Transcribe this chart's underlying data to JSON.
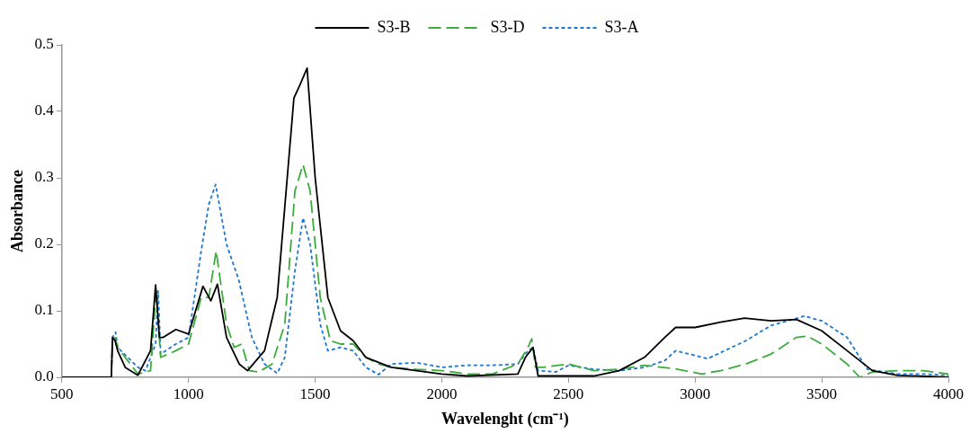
{
  "chart_data": {
    "type": "line",
    "xlabel": "Wavelenght (cm⁻¹)",
    "ylabel": "Absorbance",
    "legend": "top",
    "marker": "none",
    "grid": false,
    "xlim": [
      500,
      4000
    ],
    "xticks": [
      500,
      1000,
      1500,
      2000,
      2500,
      3000,
      3500,
      4000
    ],
    "ylim": [
      0,
      0.5
    ],
    "yticks": [
      {
        "value": 0,
        "label": "0.0"
      },
      0.1,
      0.2,
      0.3,
      0.4,
      0.5
    ],
    "series": [
      {
        "name": "S3-B",
        "color": "#000000",
        "line_style": "solid",
        "x": [
          500,
          695,
          700,
          710,
          720,
          750,
          800,
          850,
          870,
          885,
          900,
          950,
          1000,
          1057,
          1088,
          1114,
          1150,
          1200,
          1233,
          1300,
          1350,
          1416,
          1440,
          1468,
          1500,
          1550,
          1600,
          1650,
          1700,
          1800,
          1900,
          2000,
          2100,
          2300,
          2330,
          2350,
          2360,
          2380,
          2500,
          2600,
          2700,
          2800,
          2880,
          2923,
          3000,
          3100,
          3195,
          3300,
          3400,
          3500,
          3600,
          3700,
          3800,
          4000
        ],
        "values": [
          0,
          0,
          0.06,
          0.055,
          0.04,
          0.015,
          0.003,
          0.04,
          0.139,
          0.06,
          0.06,
          0.072,
          0.065,
          0.137,
          0.115,
          0.14,
          0.06,
          0.02,
          0.01,
          0.04,
          0.12,
          0.42,
          0.44,
          0.465,
          0.3,
          0.12,
          0.07,
          0.055,
          0.03,
          0.015,
          0.01,
          0.005,
          0.002,
          0.005,
          0.03,
          0.04,
          0.045,
          0.002,
          0.002,
          0.002,
          0.01,
          0.03,
          0.06,
          0.075,
          0.075,
          0.083,
          0.089,
          0.085,
          0.087,
          0.07,
          0.04,
          0.01,
          0.003,
          0
        ]
      },
      {
        "name": "S3-D",
        "color": "#3cac3c",
        "line_style": "dashed",
        "x": [
          500,
          695,
          700,
          710,
          720,
          800,
          850,
          872,
          890,
          950,
          1000,
          1050,
          1080,
          1109,
          1150,
          1180,
          1210,
          1240,
          1277,
          1330,
          1380,
          1420,
          1452,
          1480,
          1520,
          1560,
          1600,
          1650,
          1700,
          1750,
          1800,
          1900,
          2000,
          2100,
          2200,
          2300,
          2340,
          2355,
          2370,
          2400,
          2500,
          2600,
          2700,
          2800,
          2918,
          3026,
          3100,
          3200,
          3300,
          3400,
          3443,
          3500,
          3600,
          3650,
          3700,
          3800,
          3900,
          4000
        ],
        "values": [
          0,
          0,
          0.055,
          0.06,
          0.045,
          0.005,
          0.01,
          0.13,
          0.03,
          0.04,
          0.05,
          0.12,
          0.12,
          0.19,
          0.08,
          0.045,
          0.05,
          0.01,
          0.008,
          0.02,
          0.08,
          0.28,
          0.32,
          0.28,
          0.12,
          0.055,
          0.05,
          0.05,
          0.03,
          0.02,
          0.015,
          0.012,
          0.01,
          0.005,
          0.005,
          0.02,
          0.045,
          0.058,
          0.015,
          0.015,
          0.02,
          0.01,
          0.012,
          0.018,
          0.013,
          0.005,
          0.01,
          0.02,
          0.035,
          0.06,
          0.062,
          0.05,
          0.02,
          0,
          0.008,
          0.01,
          0.01,
          0.005
        ]
      },
      {
        "name": "S3-A",
        "color": "#1f78d0",
        "line_style": "dotted",
        "x": [
          500,
          695,
          700,
          712,
          720,
          800,
          830,
          870,
          880,
          890,
          950,
          1000,
          1050,
          1080,
          1107,
          1150,
          1198,
          1250,
          1300,
          1350,
          1380,
          1420,
          1452,
          1480,
          1520,
          1550,
          1600,
          1650,
          1700,
          1750,
          1800,
          1900,
          2000,
          2100,
          2200,
          2300,
          2340,
          2360,
          2380,
          2450,
          2500,
          2600,
          2700,
          2800,
          2880,
          2923,
          3050,
          3200,
          3300,
          3431,
          3500,
          3600,
          3680,
          3800,
          3900,
          4000
        ],
        "values": [
          0,
          0,
          0.06,
          0.068,
          0.045,
          0.015,
          0.01,
          0.05,
          0.13,
          0.035,
          0.05,
          0.06,
          0.19,
          0.26,
          0.29,
          0.2,
          0.147,
          0.06,
          0.02,
          0.006,
          0.03,
          0.16,
          0.24,
          0.2,
          0.08,
          0.04,
          0.045,
          0.04,
          0.015,
          0.004,
          0.02,
          0.022,
          0.015,
          0.018,
          0.018,
          0.02,
          0.04,
          0.045,
          0.01,
          0.008,
          0.018,
          0.012,
          0.01,
          0.015,
          0.025,
          0.04,
          0.028,
          0.055,
          0.078,
          0.092,
          0.085,
          0.06,
          0.012,
          0.005,
          0.005,
          0.003
        ]
      }
    ]
  }
}
